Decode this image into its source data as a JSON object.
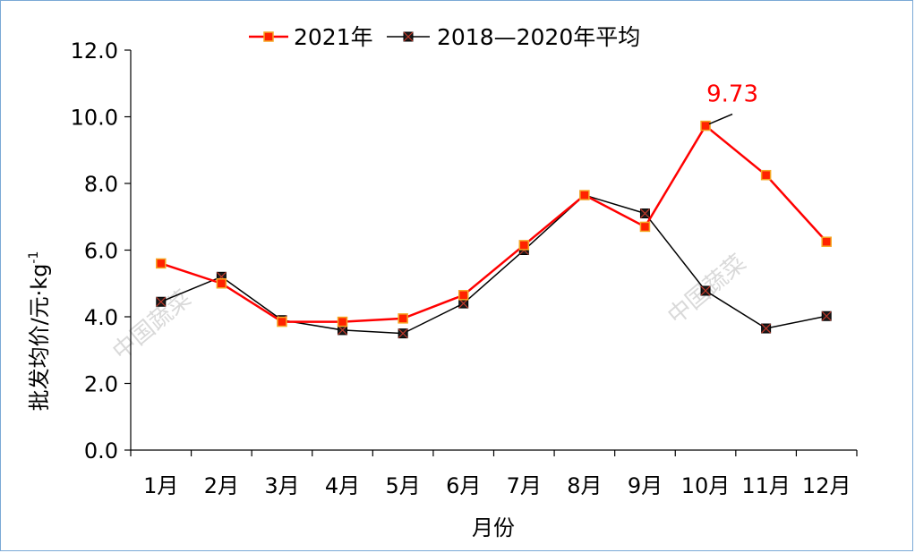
{
  "chart_data": {
    "type": "line",
    "categories": [
      "1月",
      "2月",
      "3月",
      "4月",
      "5月",
      "6月",
      "7月",
      "8月",
      "9月",
      "10月",
      "11月",
      "12月"
    ],
    "series": [
      {
        "name": "2021年",
        "color": "#ff0000",
        "marker_fill": "#ff2200",
        "marker_edge": "#f5a623",
        "marker": "square",
        "values": [
          5.6,
          5.0,
          3.85,
          3.85,
          3.95,
          4.65,
          6.15,
          7.65,
          6.7,
          9.73,
          8.25,
          6.25
        ]
      },
      {
        "name": "2018—2020年平均",
        "color": "#000000",
        "marker": "x-square",
        "values": [
          4.45,
          5.2,
          3.9,
          3.6,
          3.5,
          4.4,
          6.0,
          7.65,
          7.1,
          4.78,
          3.65,
          4.02
        ]
      }
    ],
    "ylim": [
      0,
      12
    ],
    "yticks": [
      "0.0",
      "2.0",
      "4.0",
      "6.0",
      "8.0",
      "10.0",
      "12.0"
    ],
    "xlabel": "月份",
    "ylabel_main": "批发均价/元·kg",
    "ylabel_sup": "-1",
    "legend_position": "top",
    "annotation": {
      "text": "9.73",
      "series": 0,
      "index": 9,
      "color": "#ff0000"
    },
    "watermarks": [
      "中国蔬菜",
      "中国蔬菜"
    ]
  }
}
